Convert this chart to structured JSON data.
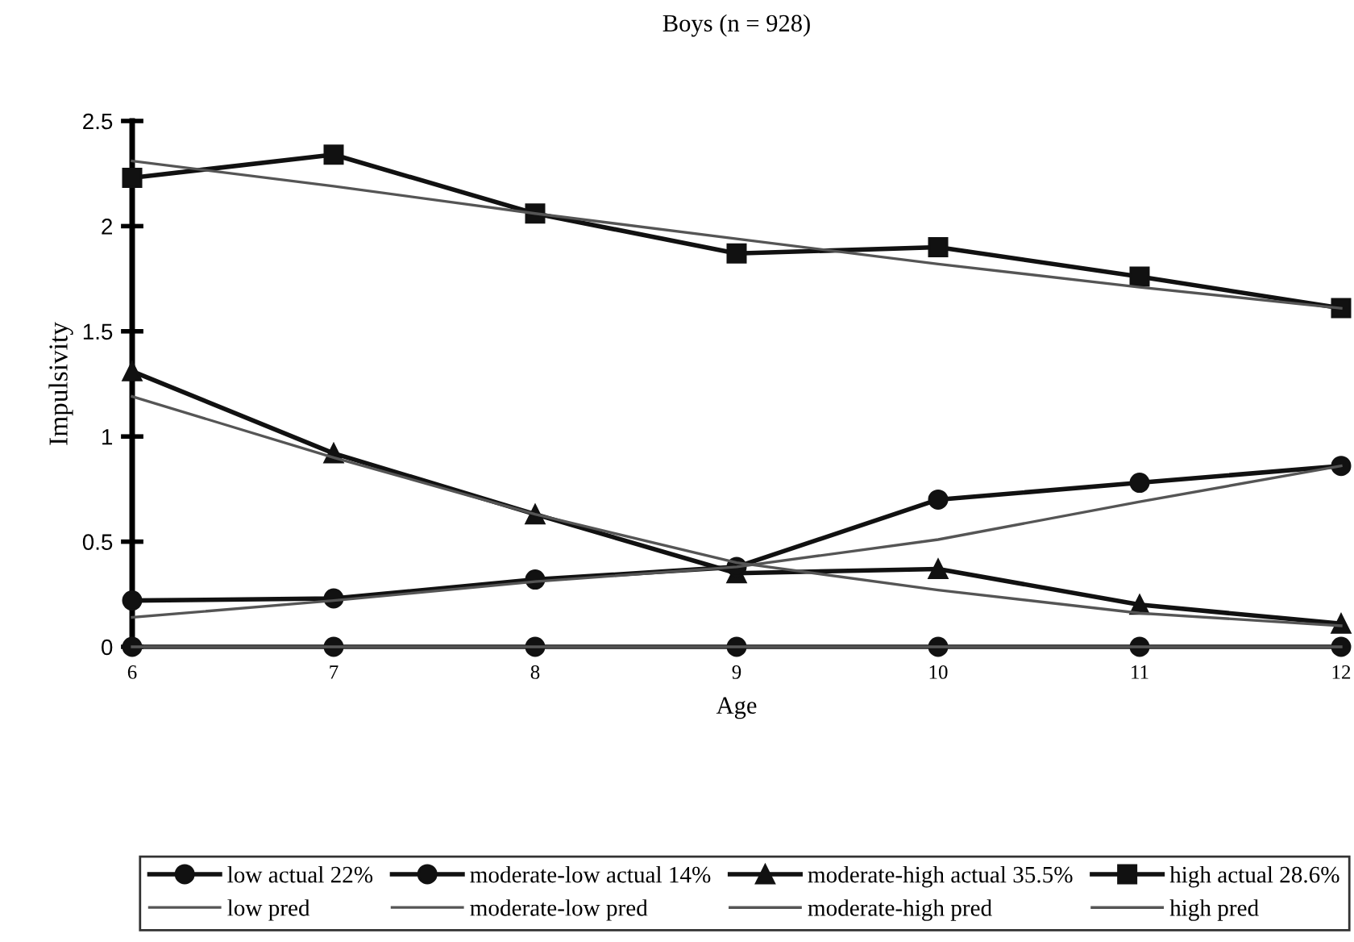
{
  "chart_data": {
    "type": "line",
    "title": "Boys (n = 928)",
    "xlabel": "Age",
    "ylabel": "Impulsivity",
    "x": [
      6,
      7,
      8,
      9,
      10,
      11,
      12
    ],
    "xlim": [
      6,
      12
    ],
    "xticks": [
      6,
      7,
      8,
      9,
      10,
      11,
      12
    ],
    "ylim": [
      0,
      2.5
    ],
    "yticks": [
      0,
      0.5,
      1,
      1.5,
      2,
      2.5
    ],
    "grid": false,
    "legend": "bottom",
    "series": [
      {
        "name": "low actual 22%",
        "color": "#111111",
        "marker": "circle",
        "values": [
          0,
          0,
          0,
          0,
          0,
          0,
          0
        ]
      },
      {
        "name": "moderate-low actual 14%",
        "color": "#111111",
        "marker": "circle",
        "values": [
          0.22,
          0.23,
          0.32,
          0.38,
          0.7,
          0.78,
          0.86
        ]
      },
      {
        "name": "moderate-high actual 35.5%",
        "color": "#111111",
        "marker": "triangle",
        "values": [
          1.31,
          0.92,
          0.63,
          0.35,
          0.37,
          0.2,
          0.11
        ]
      },
      {
        "name": "high actual 28.6%",
        "color": "#111111",
        "marker": "square",
        "values": [
          2.23,
          2.34,
          2.06,
          1.87,
          1.9,
          1.76,
          1.61
        ]
      },
      {
        "name": "low pred",
        "color": "#555555",
        "marker": "none",
        "values": [
          0,
          0,
          0,
          0,
          0,
          0,
          0
        ]
      },
      {
        "name": "moderate-low pred",
        "color": "#555555",
        "marker": "none",
        "values": [
          0.14,
          0.22,
          0.31,
          0.38,
          0.51,
          0.69,
          0.86
        ]
      },
      {
        "name": "moderate-high pred",
        "color": "#555555",
        "marker": "none",
        "values": [
          1.19,
          0.9,
          0.63,
          0.4,
          0.27,
          0.16,
          0.1
        ]
      },
      {
        "name": "high pred",
        "color": "#555555",
        "marker": "none",
        "values": [
          2.31,
          2.19,
          2.06,
          1.94,
          1.82,
          1.71,
          1.61
        ]
      }
    ]
  }
}
